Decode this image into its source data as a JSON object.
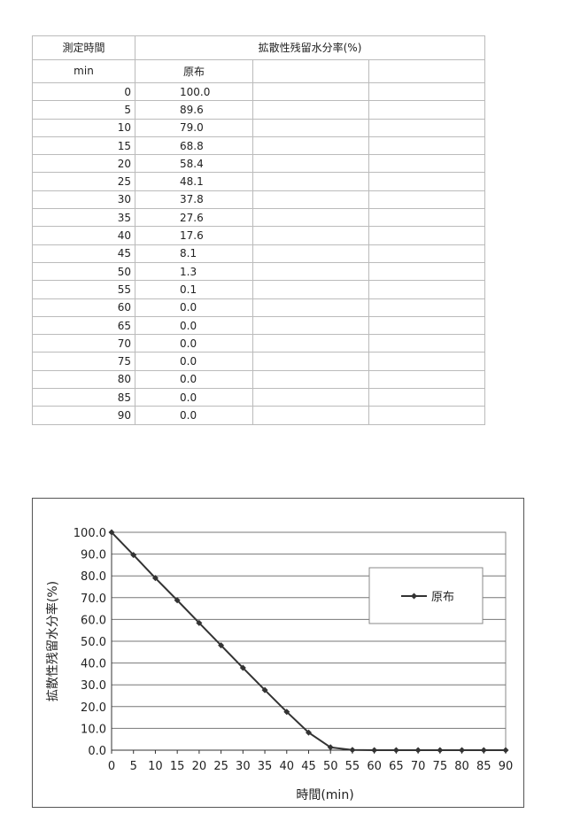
{
  "table": {
    "header_time": "測定時間",
    "header_value": "拡散性残留水分率(%)",
    "unit_time": "min",
    "series_label": "原布",
    "rows": [
      {
        "t": "0",
        "v": "100.0"
      },
      {
        "t": "5",
        "v": "89.6"
      },
      {
        "t": "10",
        "v": "79.0"
      },
      {
        "t": "15",
        "v": "68.8"
      },
      {
        "t": "20",
        "v": "58.4"
      },
      {
        "t": "25",
        "v": "48.1"
      },
      {
        "t": "30",
        "v": "37.8"
      },
      {
        "t": "35",
        "v": "27.6"
      },
      {
        "t": "40",
        "v": "17.6"
      },
      {
        "t": "45",
        "v": "8.1"
      },
      {
        "t": "50",
        "v": "1.3"
      },
      {
        "t": "55",
        "v": "0.1"
      },
      {
        "t": "60",
        "v": "0.0"
      },
      {
        "t": "65",
        "v": "0.0"
      },
      {
        "t": "70",
        "v": "0.0"
      },
      {
        "t": "75",
        "v": "0.0"
      },
      {
        "t": "80",
        "v": "0.0"
      },
      {
        "t": "85",
        "v": "0.0"
      },
      {
        "t": "90",
        "v": "0.0"
      }
    ]
  },
  "chart_data": {
    "type": "line",
    "xlabel": "時間(min)",
    "ylabel": "拡散性残留水分率(%)",
    "x": [
      0,
      5,
      10,
      15,
      20,
      25,
      30,
      35,
      40,
      45,
      50,
      55,
      60,
      65,
      70,
      75,
      80,
      85,
      90
    ],
    "series": [
      {
        "name": "原布",
        "values": [
          100.0,
          89.6,
          79.0,
          68.8,
          58.4,
          48.1,
          37.8,
          27.6,
          17.6,
          8.1,
          1.3,
          0.1,
          0.0,
          0.0,
          0.0,
          0.0,
          0.0,
          0.0,
          0.0
        ],
        "color": "#333333",
        "marker": "diamond"
      }
    ],
    "xlim": [
      0,
      90
    ],
    "ylim": [
      0,
      100
    ],
    "xticks": [
      "0",
      "5",
      "10",
      "15",
      "20",
      "25",
      "30",
      "35",
      "40",
      "45",
      "50",
      "55",
      "60",
      "65",
      "70",
      "75",
      "80",
      "85",
      "90"
    ],
    "yticks": [
      "0.0",
      "10.0",
      "20.0",
      "30.0",
      "40.0",
      "50.0",
      "60.0",
      "70.0",
      "80.0",
      "90.0",
      "100.0"
    ],
    "grid": "horizontal",
    "legend": "right"
  }
}
